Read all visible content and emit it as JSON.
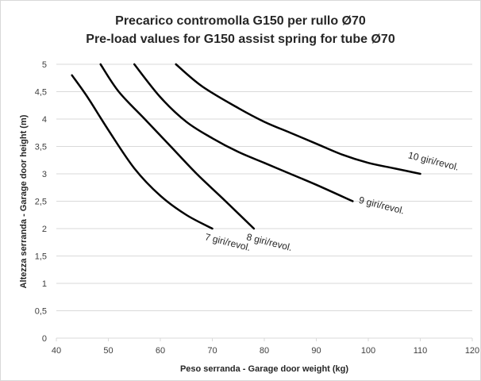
{
  "chart_data": {
    "type": "line",
    "title": "Precarico contromolla G150 per rullo Ø70",
    "subtitle": "Pre-load values for G150 assist spring for tube Ø70",
    "xlabel": "Peso serranda - Garage door weight (kg)",
    "ylabel": "Altezza serranda - Garage door height (m)",
    "xlim": [
      40,
      120
    ],
    "ylim": [
      0,
      5
    ],
    "x_ticks": [
      "40",
      "50",
      "60",
      "70",
      "80",
      "90",
      "100",
      "110",
      "120"
    ],
    "y_ticks": [
      "0",
      "0,5",
      "1",
      "1,5",
      "2",
      "2,5",
      "3",
      "3,5",
      "4",
      "4,5",
      "5"
    ],
    "grid": "horizontal",
    "legend": "none",
    "line_color": "#000000",
    "series": [
      {
        "name": "7 giri/revol.",
        "points": [
          [
            43,
            4.8
          ],
          [
            46,
            4.4
          ],
          [
            50,
            3.8
          ],
          [
            55,
            3.1
          ],
          [
            60,
            2.6
          ],
          [
            65,
            2.25
          ],
          [
            70,
            2.0
          ]
        ]
      },
      {
        "name": "8 giri/revol.",
        "points": [
          [
            48.5,
            5.0
          ],
          [
            52,
            4.5
          ],
          [
            57,
            4.0
          ],
          [
            62,
            3.5
          ],
          [
            67,
            3.0
          ],
          [
            72,
            2.55
          ],
          [
            78,
            2.0
          ]
        ]
      },
      {
        "name": "9 giri/revol.",
        "points": [
          [
            55,
            5.0
          ],
          [
            60,
            4.4
          ],
          [
            65,
            3.95
          ],
          [
            70,
            3.65
          ],
          [
            75,
            3.4
          ],
          [
            80,
            3.2
          ],
          [
            85,
            3.0
          ],
          [
            90,
            2.8
          ],
          [
            97,
            2.5
          ]
        ]
      },
      {
        "name": "10 giri/revol.",
        "points": [
          [
            63,
            5.0
          ],
          [
            68,
            4.6
          ],
          [
            75,
            4.2
          ],
          [
            80,
            3.95
          ],
          [
            85,
            3.75
          ],
          [
            90,
            3.55
          ],
          [
            95,
            3.35
          ],
          [
            100,
            3.2
          ],
          [
            105,
            3.1
          ],
          [
            110,
            3.0
          ]
        ]
      }
    ]
  }
}
